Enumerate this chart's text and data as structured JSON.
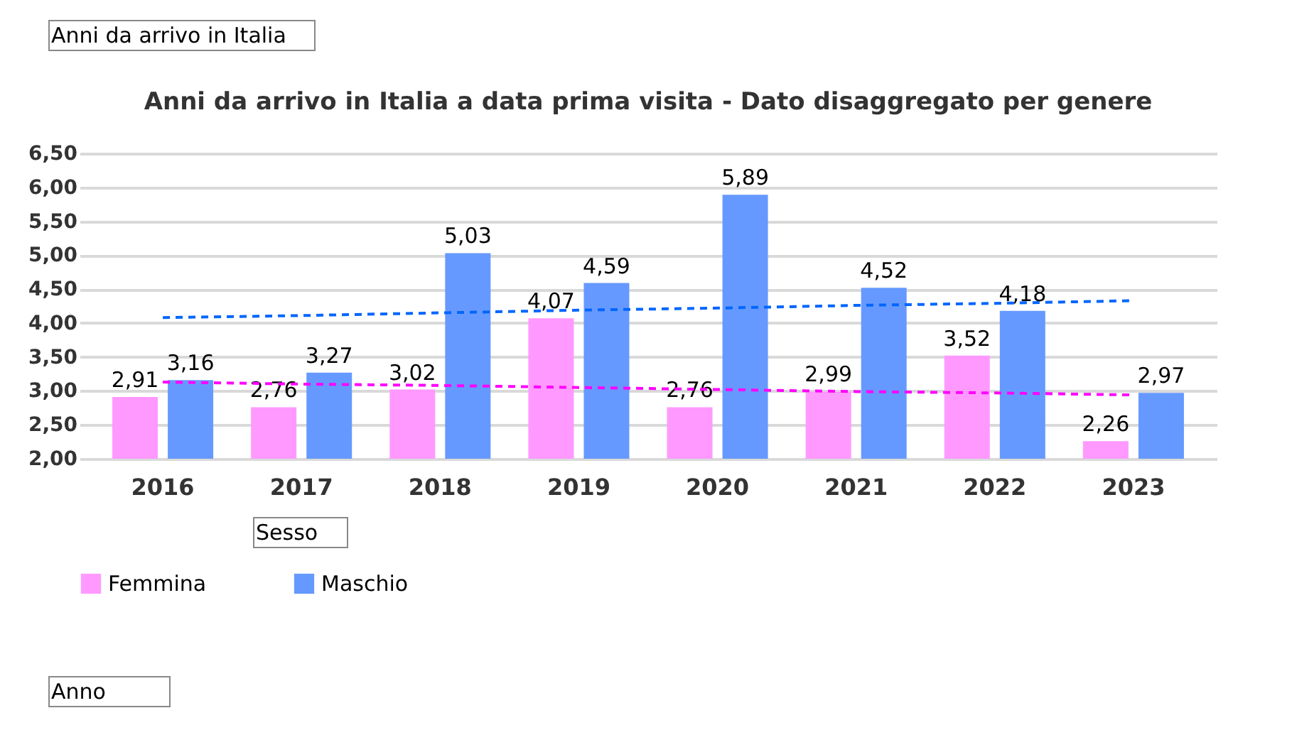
{
  "chart_data": {
    "type": "bar",
    "title": "Anni da arrivo in Italia a data prima visita - Dato disaggregato per genere",
    "annotations": [
      "Anni da arrivo in Italia",
      "Anno"
    ],
    "legend_title": "Sesso",
    "categories": [
      "2016",
      "2017",
      "2018",
      "2019",
      "2020",
      "2021",
      "2022",
      "2023"
    ],
    "series": [
      {
        "name": "Femmina",
        "color": "#ff99ff",
        "values": [
          2.91,
          2.76,
          3.02,
          4.07,
          2.76,
          2.99,
          3.52,
          2.26
        ],
        "value_labels": [
          "2,91",
          "2,76",
          "3,02",
          "4,07",
          "2,76",
          "2,99",
          "3,52",
          "2,26"
        ]
      },
      {
        "name": "Maschio",
        "color": "#6699ff",
        "values": [
          3.16,
          3.27,
          5.03,
          4.59,
          5.89,
          4.52,
          4.18,
          2.97
        ],
        "value_labels": [
          "3,16",
          "3,27",
          "5,03",
          "4,59",
          "5,89",
          "4,52",
          "4,18",
          "2,97"
        ]
      },
      {
        "type": "line",
        "values": [
          3.13,
          3.1,
          3.08,
          3.05,
          3.02,
          2.99,
          2.97,
          2.94
        ],
        "color": "#ff00ff",
        "line_style": "dashed"
      },
      {
        "type": "line",
        "values": [
          4.08,
          4.11,
          4.15,
          4.19,
          4.22,
          4.26,
          4.29,
          4.33
        ],
        "color": "#0066ff",
        "line_style": "dashed"
      }
    ],
    "ylim": [
      2,
      6.5
    ],
    "yticks": [
      {
        "value": 2,
        "label": "2,00"
      },
      {
        "value": 2.5,
        "label": "2,50"
      },
      {
        "value": 3,
        "label": "3,00"
      },
      {
        "value": 3.5,
        "label": "3,50"
      },
      {
        "value": 4,
        "label": "4,00"
      },
      {
        "value": 4.5,
        "label": "4,50"
      },
      {
        "value": 5,
        "label": "5,00"
      },
      {
        "value": 5.5,
        "label": "5,50"
      },
      {
        "value": 6,
        "label": "6,00"
      },
      {
        "value": 6.5,
        "label": "6,50"
      }
    ],
    "grid": "y",
    "legend": "bottom"
  }
}
